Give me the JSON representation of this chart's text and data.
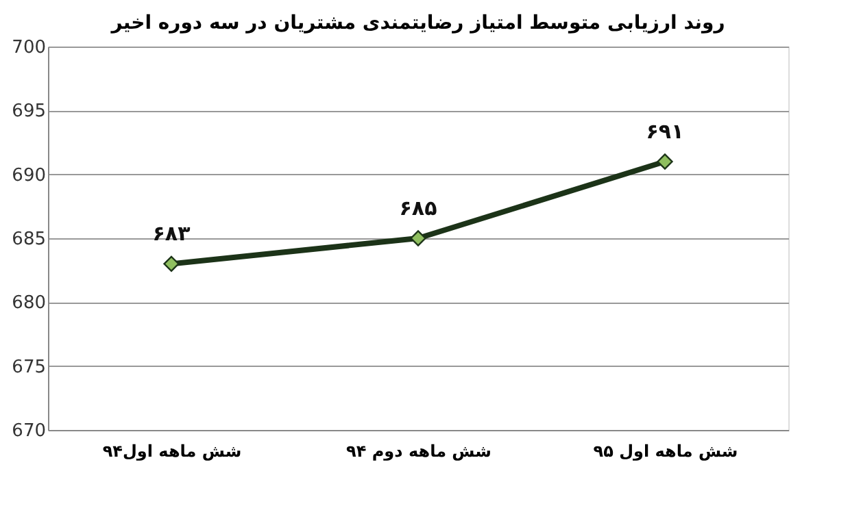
{
  "chart_data": {
    "type": "line",
    "title": "روند ارزیابی متوسط امتیاز رضایتمندی مشتریان در سه دوره اخیر",
    "categories": [
      "شش ماهه اول۹۴",
      "شش ماهه دوم ۹۴",
      "شش ماهه اول ۹۵"
    ],
    "series": [
      {
        "color": "#1c3318",
        "values": [
          683,
          685,
          691
        ],
        "value_labels": [
          "۶۸۳",
          "۶۸۵",
          "۶۹۱"
        ]
      }
    ],
    "ylim": [
      670,
      700
    ],
    "yticks": [
      670,
      675,
      680,
      685,
      690,
      695,
      700
    ],
    "grid": "y",
    "marker": "diamond",
    "line_style": "solid"
  }
}
